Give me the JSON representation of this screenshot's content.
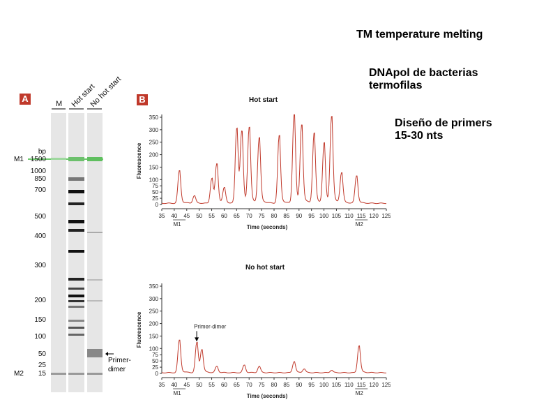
{
  "notes": {
    "tm": "TM temperature melting",
    "dnapol_line1": "DNApol de bacterias",
    "dnapol_line2": "termofilas",
    "primers_line1": "Diseño de primers",
    "primers_line2": "15-30 nts"
  },
  "panel_a": {
    "badge": "A",
    "lanes": [
      "M",
      "Hot start",
      "No hot start"
    ],
    "bp_unit": "bp",
    "marker_top": "M1",
    "marker_bottom": "M2",
    "bp_labels": [
      "1500",
      "1000",
      "850",
      "700",
      "500",
      "400",
      "300",
      "200",
      "150",
      "100",
      "50",
      "25",
      "15"
    ],
    "primer_dimer_line1": "Primer-",
    "primer_dimer_line2": "dimer"
  },
  "panel_b": {
    "badge": "B"
  },
  "chart_data": [
    {
      "type": "line",
      "title": "Hot start",
      "xlabel": "Time (seconds)",
      "ylabel": "Fluorescence",
      "xlim": [
        35,
        125
      ],
      "ylim": [
        0,
        350
      ],
      "x_ticks": [
        "35",
        "40",
        "45",
        "50",
        "55",
        "60",
        "65",
        "70",
        "75",
        "80",
        "85",
        "90",
        "95",
        "100",
        "105",
        "110",
        "115",
        "120",
        "125"
      ],
      "y_ticks": [
        "0",
        "25",
        "50",
        "75",
        "100",
        "150",
        "200",
        "250",
        "300",
        "350"
      ],
      "y_tick_values": [
        0,
        25,
        50,
        75,
        100,
        150,
        200,
        250,
        300,
        350
      ],
      "markers": [
        {
          "label": "M1",
          "x": 42
        },
        {
          "label": "M2",
          "x": 115
        }
      ],
      "baseline": 5,
      "peaks": [
        {
          "x": 42,
          "y": 130
        },
        {
          "x": 48,
          "y": 30
        },
        {
          "x": 55,
          "y": 100
        },
        {
          "x": 57,
          "y": 155
        },
        {
          "x": 60,
          "y": 60
        },
        {
          "x": 65,
          "y": 300
        },
        {
          "x": 67,
          "y": 280
        },
        {
          "x": 70,
          "y": 300
        },
        {
          "x": 74,
          "y": 260
        },
        {
          "x": 82,
          "y": 270
        },
        {
          "x": 88,
          "y": 360
        },
        {
          "x": 91,
          "y": 310
        },
        {
          "x": 96,
          "y": 280
        },
        {
          "x": 100,
          "y": 240
        },
        {
          "x": 103,
          "y": 345
        },
        {
          "x": 107,
          "y": 120
        },
        {
          "x": 113,
          "y": 110
        }
      ]
    },
    {
      "type": "line",
      "title": "No hot start",
      "xlabel": "Time (seconds)",
      "ylabel": "Fluorescence",
      "xlim": [
        35,
        125
      ],
      "ylim": [
        0,
        350
      ],
      "x_ticks": [
        "35",
        "40",
        "45",
        "50",
        "55",
        "60",
        "65",
        "70",
        "75",
        "80",
        "85",
        "90",
        "95",
        "100",
        "105",
        "110",
        "115",
        "120",
        "125"
      ],
      "y_ticks": [
        "0",
        "25",
        "50",
        "75",
        "100",
        "150",
        "200",
        "250",
        "300",
        "350"
      ],
      "y_tick_values": [
        0,
        25,
        50,
        75,
        100,
        150,
        200,
        250,
        300,
        350
      ],
      "markers": [
        {
          "label": "M1",
          "x": 42
        },
        {
          "label": "M2",
          "x": 115
        }
      ],
      "annotation": {
        "label": "Primer-dimer",
        "x": 49,
        "y": 125
      },
      "baseline": 3,
      "peaks": [
        {
          "x": 42,
          "y": 130
        },
        {
          "x": 49,
          "y": 120
        },
        {
          "x": 51,
          "y": 90
        },
        {
          "x": 57,
          "y": 25
        },
        {
          "x": 68,
          "y": 30
        },
        {
          "x": 74,
          "y": 25
        },
        {
          "x": 88,
          "y": 45
        },
        {
          "x": 92,
          "y": 15
        },
        {
          "x": 103,
          "y": 10
        },
        {
          "x": 114,
          "y": 108
        }
      ]
    }
  ]
}
